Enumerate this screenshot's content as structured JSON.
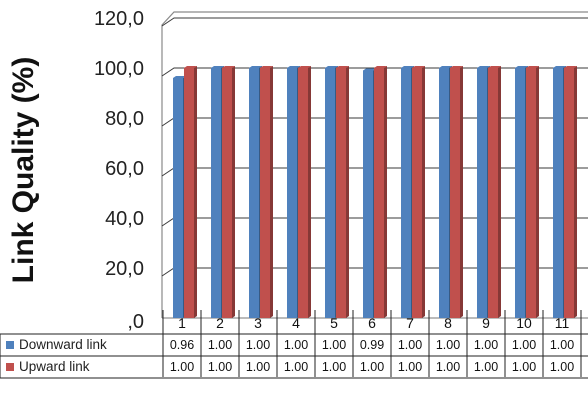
{
  "chart_data": {
    "type": "bar",
    "ylabel": "Link Quality (%)",
    "ylim": [
      0,
      120
    ],
    "yticks": [
      ",0",
      "20,0",
      "40,0",
      "60,0",
      "80,0",
      "100,0",
      "120,0"
    ],
    "categories": [
      "1",
      "2",
      "3",
      "4",
      "5",
      "6",
      "7",
      "8",
      "9",
      "10",
      "11"
    ],
    "series": [
      {
        "name": "Downward link",
        "color": "#4f81bd",
        "values": [
          96,
          100,
          100,
          100,
          100,
          99,
          100,
          100,
          100,
          100,
          100
        ],
        "table_values": [
          "0.96",
          "1.00",
          "1.00",
          "1.00",
          "1.00",
          "0.99",
          "1.00",
          "1.00",
          "1.00",
          "1.00",
          "1.00"
        ]
      },
      {
        "name": "Upward link",
        "color": "#c0504d",
        "values": [
          100,
          100,
          100,
          100,
          100,
          100,
          100,
          100,
          100,
          100,
          100
        ],
        "table_values": [
          "1.00",
          "1.00",
          "1.00",
          "1.00",
          "1.00",
          "1.00",
          "1.00",
          "1.00",
          "1.00",
          "1.00",
          "1.00"
        ]
      }
    ],
    "grid": true,
    "legend": "data-table-left"
  }
}
